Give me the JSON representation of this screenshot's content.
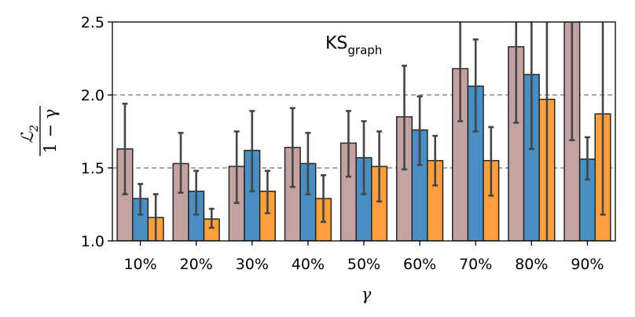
{
  "chart_data": {
    "type": "bar",
    "title": "KS",
    "title_subscript": "graph",
    "xlabel": "γ",
    "ylabel": {
      "numerator": "ℒ",
      "numerator_subscript": "2",
      "denominator": "1 − γ"
    },
    "categories": [
      "10%",
      "20%",
      "30%",
      "40%",
      "50%",
      "60%",
      "70%",
      "80%",
      "90%"
    ],
    "ylim": [
      1.0,
      2.5
    ],
    "yticks": [
      "1.0",
      "1.5",
      "2.0",
      "2.5"
    ],
    "reference_lines": [
      1.5,
      2.0
    ],
    "grid": false,
    "legend": "none",
    "series": [
      {
        "color": "#c4a2a2",
        "values": [
          1.63,
          1.53,
          1.51,
          1.64,
          1.67,
          1.85,
          2.18,
          2.33,
          2.6
        ],
        "err_low": [
          1.32,
          1.33,
          1.26,
          1.37,
          1.44,
          1.49,
          1.82,
          1.81,
          1.69
        ],
        "err_high": [
          1.94,
          1.74,
          1.75,
          1.91,
          1.89,
          2.2,
          2.6,
          2.6,
          2.6
        ]
      },
      {
        "color": "#4a8fc4",
        "values": [
          1.29,
          1.34,
          1.62,
          1.53,
          1.57,
          1.76,
          2.06,
          2.14,
          1.56
        ],
        "err_low": [
          1.18,
          1.18,
          1.34,
          1.32,
          1.32,
          1.52,
          1.75,
          1.63,
          1.42
        ],
        "err_high": [
          1.39,
          1.48,
          1.89,
          1.74,
          1.82,
          1.99,
          2.38,
          2.6,
          1.71
        ]
      },
      {
        "color": "#ff9f3d",
        "values": [
          1.16,
          1.15,
          1.34,
          1.29,
          1.51,
          1.55,
          1.55,
          1.97,
          1.87
        ],
        "err_low": [
          1.0,
          1.09,
          1.19,
          1.13,
          1.27,
          1.38,
          1.31,
          1.0,
          1.18
        ],
        "err_high": [
          1.32,
          1.22,
          1.48,
          1.45,
          1.75,
          1.72,
          1.78,
          2.6,
          2.6
        ]
      }
    ]
  }
}
